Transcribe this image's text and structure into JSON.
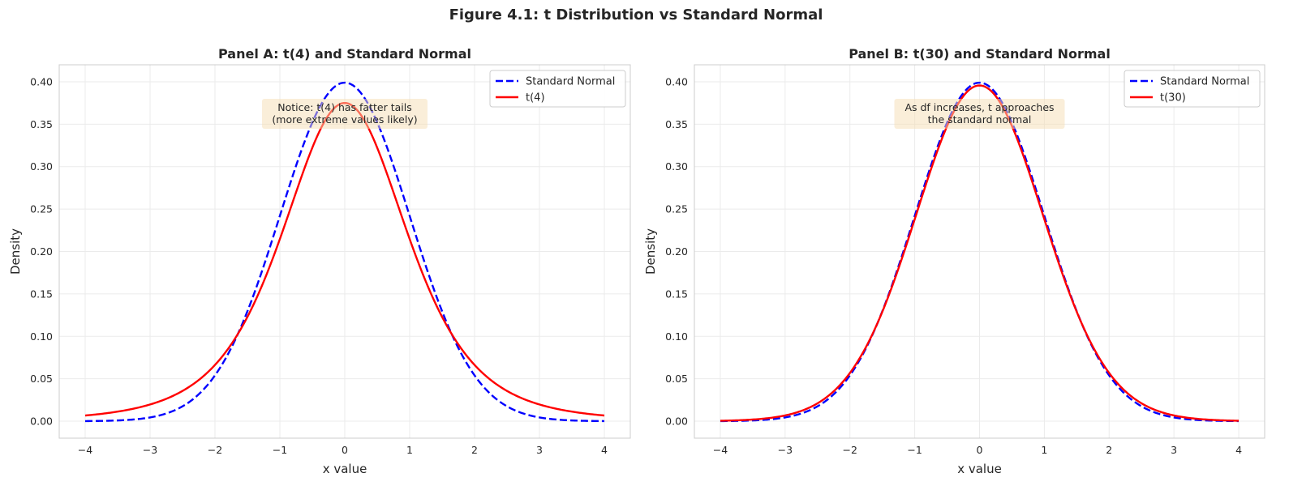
{
  "chart_data": {
    "title": "Figure 4.1: t Distribution vs Standard Normal",
    "panels": [
      {
        "type": "line",
        "title": "Panel A: t(4) and Standard Normal",
        "xlabel": "x value",
        "ylabel": "Density",
        "xlim": [
          -4.4,
          4.4
        ],
        "ylim": [
          -0.02,
          0.42
        ],
        "xticks": [
          -4,
          -3,
          -2,
          -1,
          0,
          1,
          2,
          3,
          4
        ],
        "xtick_labels": [
          "−4",
          "−3",
          "−2",
          "−1",
          "0",
          "1",
          "2",
          "3",
          "4"
        ],
        "yticks": [
          0,
          0.05,
          0.1,
          0.15,
          0.2,
          0.25,
          0.3,
          0.35,
          0.4
        ],
        "ytick_labels": [
          "0.00",
          "0.05",
          "0.10",
          "0.15",
          "0.20",
          "0.25",
          "0.30",
          "0.35",
          "0.40"
        ],
        "grid": true,
        "legend_position": "top-right",
        "annotation": [
          "Notice: t(4) has fatter tails",
          "(more extreme values likely)"
        ],
        "x": [
          -4,
          -3,
          -2,
          -1,
          0,
          1,
          2,
          3,
          4
        ],
        "series": [
          {
            "name": "Standard Normal",
            "dist": "normal",
            "color": "#0000ff",
            "style": "dashed",
            "values": [
              0.0001,
              0.0044,
              0.054,
              0.242,
              0.3989,
              0.242,
              0.054,
              0.0044,
              0.0001
            ]
          },
          {
            "name": "t(4)",
            "dist": "t",
            "df": 4,
            "color": "#ff0000",
            "style": "solid",
            "values": [
              0.0067,
              0.0197,
              0.0663,
              0.2147,
              0.375,
              0.2147,
              0.0663,
              0.0197,
              0.0067
            ]
          }
        ]
      },
      {
        "type": "line",
        "title": "Panel B: t(30) and Standard Normal",
        "xlabel": "x value",
        "ylabel": "Density",
        "xlim": [
          -4.4,
          4.4
        ],
        "ylim": [
          -0.02,
          0.42
        ],
        "xticks": [
          -4,
          -3,
          -2,
          -1,
          0,
          1,
          2,
          3,
          4
        ],
        "xtick_labels": [
          "−4",
          "−3",
          "−2",
          "−1",
          "0",
          "1",
          "2",
          "3",
          "4"
        ],
        "yticks": [
          0,
          0.05,
          0.1,
          0.15,
          0.2,
          0.25,
          0.3,
          0.35,
          0.4
        ],
        "ytick_labels": [
          "0.00",
          "0.05",
          "0.10",
          "0.15",
          "0.20",
          "0.25",
          "0.30",
          "0.35",
          "0.40"
        ],
        "grid": true,
        "legend_position": "top-right",
        "annotation": [
          "As df increases, t approaches",
          "the standard normal"
        ],
        "x": [
          -4,
          -3,
          -2,
          -1,
          0,
          1,
          2,
          3,
          4
        ],
        "series": [
          {
            "name": "Standard Normal",
            "dist": "normal",
            "color": "#0000ff",
            "style": "dashed",
            "values": [
              0.0001,
              0.0044,
              0.054,
              0.242,
              0.3989,
              0.242,
              0.054,
              0.0044,
              0.0001
            ]
          },
          {
            "name": "t(30)",
            "dist": "t",
            "df": 30,
            "color": "#ff0000",
            "style": "solid",
            "values": [
              0.0004,
              0.0062,
              0.058,
              0.2379,
              0.3956,
              0.2379,
              0.058,
              0.0062,
              0.0004
            ]
          }
        ]
      }
    ]
  }
}
